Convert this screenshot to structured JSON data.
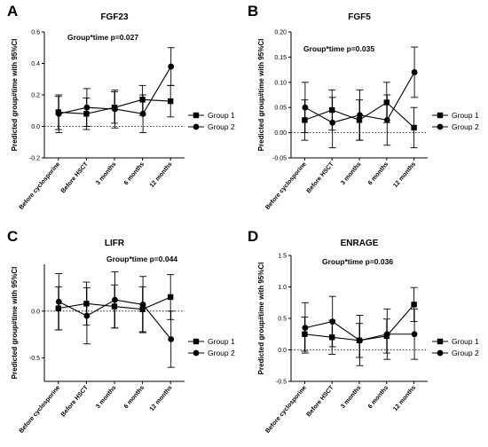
{
  "chart_data": [
    {
      "panel": "A",
      "type": "line",
      "title": "FGF23",
      "annotation": "Group*time p=0.027",
      "ylabel": "Predicted group#time with 95%CI",
      "xlabel": "",
      "categories": [
        "Before cyclosporine",
        "Before HSCT",
        "3 months",
        "6 months",
        "12 months"
      ],
      "ylim": [
        -0.2,
        0.6
      ],
      "yticks": [
        -0.2,
        0.0,
        0.2,
        0.4,
        0.6
      ],
      "ytick_labels": [
        "-0.2",
        "0.0",
        "0.2",
        "0.4",
        "0.6"
      ],
      "reference_line": 0,
      "series": [
        {
          "name": "Group 1",
          "marker": "square",
          "values": [
            0.09,
            0.08,
            0.12,
            0.17,
            0.16
          ],
          "ci_low": [
            -0.02,
            -0.02,
            0.02,
            0.07,
            0.06
          ],
          "ci_high": [
            0.19,
            0.18,
            0.22,
            0.26,
            0.26
          ]
        },
        {
          "name": "Group 2",
          "marker": "circle",
          "values": [
            0.08,
            0.12,
            0.11,
            0.08,
            0.38
          ],
          "ci_low": [
            -0.04,
            0.0,
            -0.01,
            -0.04,
            0.26
          ],
          "ci_high": [
            0.2,
            0.24,
            0.23,
            0.2,
            0.5
          ]
        }
      ],
      "legend_position": "right"
    },
    {
      "panel": "B",
      "type": "line",
      "title": "FGF5",
      "annotation": "Group*time p=0.035",
      "ylabel": "Predicted group#time with 95%CI",
      "xlabel": "",
      "categories": [
        "Before cyclosporine",
        "Before HSCT",
        "3 months",
        "6 months",
        "12 months"
      ],
      "ylim": [
        -0.05,
        0.2
      ],
      "yticks": [
        -0.05,
        0.0,
        0.05,
        0.1,
        0.15,
        0.2
      ],
      "ytick_labels": [
        "-0.05",
        "0.00",
        "0.05",
        "0.10",
        "0.15",
        "0.20"
      ],
      "reference_line": 0,
      "series": [
        {
          "name": "Group 1",
          "marker": "square",
          "values": [
            0.025,
            0.045,
            0.025,
            0.06,
            0.01
          ],
          "ci_low": [
            -0.015,
            0.005,
            -0.015,
            0.02,
            -0.03
          ],
          "ci_high": [
            0.065,
            0.085,
            0.065,
            0.1,
            0.05
          ]
        },
        {
          "name": "Group 2",
          "marker": "circle",
          "values": [
            0.05,
            0.02,
            0.035,
            0.025,
            0.12
          ],
          "ci_low": [
            0.0,
            -0.03,
            -0.015,
            -0.025,
            0.07
          ],
          "ci_high": [
            0.1,
            0.07,
            0.085,
            0.075,
            0.17
          ]
        }
      ],
      "legend_position": "right"
    },
    {
      "panel": "C",
      "type": "line",
      "title": "LIFR",
      "annotation": "Group*time p=0.044",
      "ylabel": "Predicted group#time with 95%CI",
      "xlabel": "",
      "categories": [
        "Before cyclosporine",
        "Before HSCT",
        "3 months",
        "6 months",
        "12 months"
      ],
      "ylim": [
        -0.75,
        0.5
      ],
      "yticks": [
        -0.5,
        0.0
      ],
      "ytick_labels": [
        "-0.5",
        "0.0"
      ],
      "reference_line": 0,
      "series": [
        {
          "name": "Group 1",
          "marker": "square",
          "values": [
            0.03,
            0.08,
            0.05,
            0.02,
            0.15
          ],
          "ci_low": [
            -0.2,
            -0.15,
            -0.18,
            -0.22,
            -0.09
          ],
          "ci_high": [
            0.26,
            0.31,
            0.28,
            0.26,
            0.39
          ]
        },
        {
          "name": "Group 2",
          "marker": "circle",
          "values": [
            0.1,
            -0.05,
            0.12,
            0.07,
            -0.3
          ],
          "ci_low": [
            -0.2,
            -0.35,
            -0.18,
            -0.23,
            -0.6
          ],
          "ci_high": [
            0.4,
            0.25,
            0.42,
            0.37,
            0.0
          ]
        }
      ],
      "legend_position": "right"
    },
    {
      "panel": "D",
      "type": "line",
      "title": "ENRAGE",
      "annotation": "Group*time p=0.036",
      "ylabel": "Predicted group#time with 95%CI",
      "xlabel": "",
      "categories": [
        "Before cyclosporine",
        "Before HSCT",
        "3 months",
        "6 months",
        "12 months"
      ],
      "ylim": [
        -0.5,
        1.5
      ],
      "yticks": [
        -0.5,
        0.0,
        0.5,
        1.0,
        1.5
      ],
      "ytick_labels": [
        "-0.5",
        "0.0",
        "0.5",
        "1.0",
        "1.5"
      ],
      "reference_line": 0,
      "series": [
        {
          "name": "Group 1",
          "marker": "square",
          "values": [
            0.25,
            0.2,
            0.15,
            0.22,
            0.72
          ],
          "ci_low": [
            -0.02,
            -0.07,
            -0.12,
            -0.05,
            0.45
          ],
          "ci_high": [
            0.52,
            0.47,
            0.42,
            0.49,
            0.99
          ]
        },
        {
          "name": "Group 2",
          "marker": "circle",
          "values": [
            0.35,
            0.45,
            0.15,
            0.25,
            0.25
          ],
          "ci_low": [
            -0.05,
            0.05,
            -0.25,
            -0.15,
            -0.15
          ],
          "ci_high": [
            0.75,
            0.85,
            0.55,
            0.65,
            0.65
          ]
        }
      ],
      "legend_position": "right"
    }
  ]
}
